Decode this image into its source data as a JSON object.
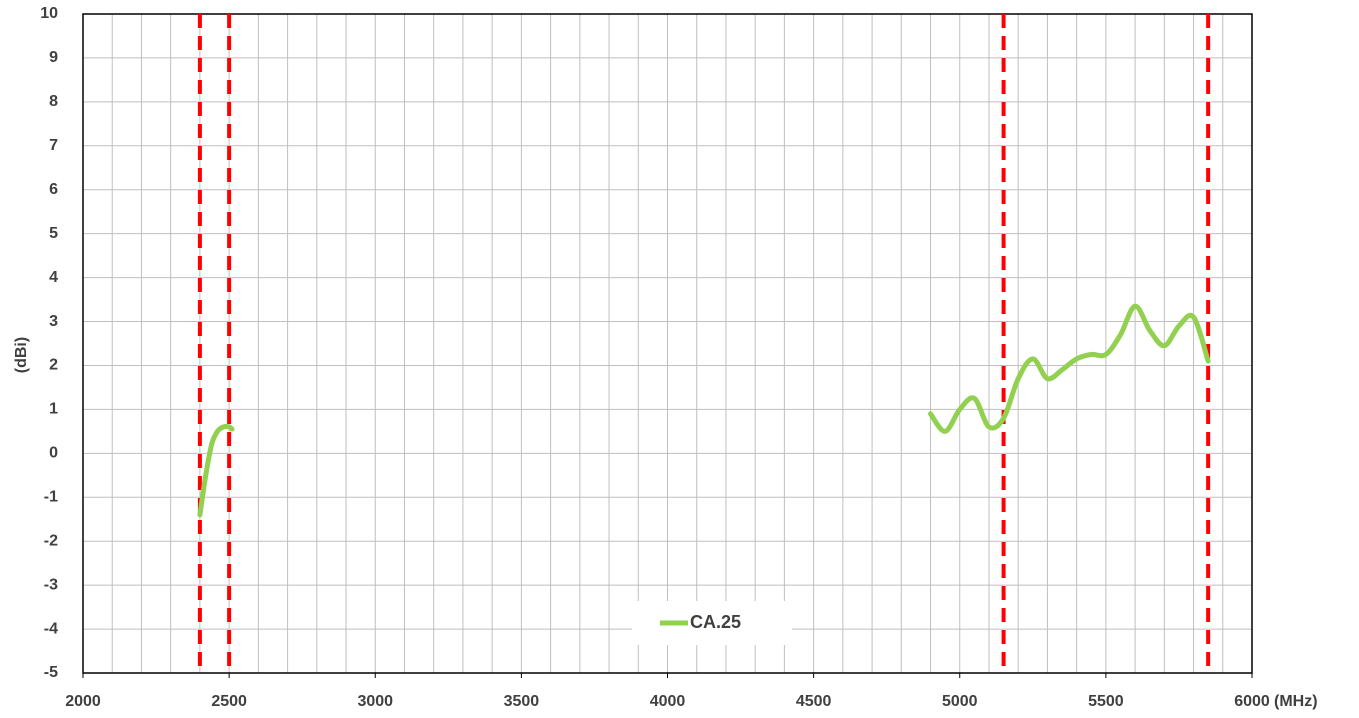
{
  "chart_data": {
    "type": "line",
    "x": [
      2400,
      2420,
      2440,
      2460,
      2480,
      2500,
      2510,
      null,
      4900,
      4950,
      5000,
      5050,
      5100,
      5150,
      5200,
      5250,
      5300,
      5350,
      5400,
      5450,
      5500,
      5550,
      5600,
      5650,
      5700,
      5750,
      5800,
      5850
    ],
    "series": [
      {
        "name": "CA.25",
        "color": "#92d050",
        "values": [
          -1.4,
          -0.5,
          0.2,
          0.5,
          0.6,
          0.6,
          0.55,
          null,
          0.9,
          0.5,
          1.0,
          1.25,
          0.6,
          0.8,
          1.7,
          2.15,
          1.7,
          1.9,
          2.15,
          2.25,
          2.25,
          2.7,
          3.35,
          2.8,
          2.45,
          2.9,
          3.1,
          2.1
        ]
      }
    ],
    "ylabel": "(dBi)",
    "xlabel": "(MHz)",
    "xlim": [
      2000,
      6000
    ],
    "xticks": [
      2000,
      2500,
      3000,
      3500,
      4000,
      4500,
      5000,
      5500,
      6000
    ],
    "minor_grid_step": 100,
    "ylim": [
      -5,
      10
    ],
    "yticks": [
      -5,
      -4,
      -3,
      -2,
      -1,
      0,
      1,
      2,
      3,
      4,
      5,
      6,
      7,
      8,
      9,
      10
    ],
    "grid": true,
    "band_edges": [
      2400,
      2500,
      5150,
      5850
    ],
    "band_edge_color": "#ff0000",
    "legend": "bottom"
  }
}
